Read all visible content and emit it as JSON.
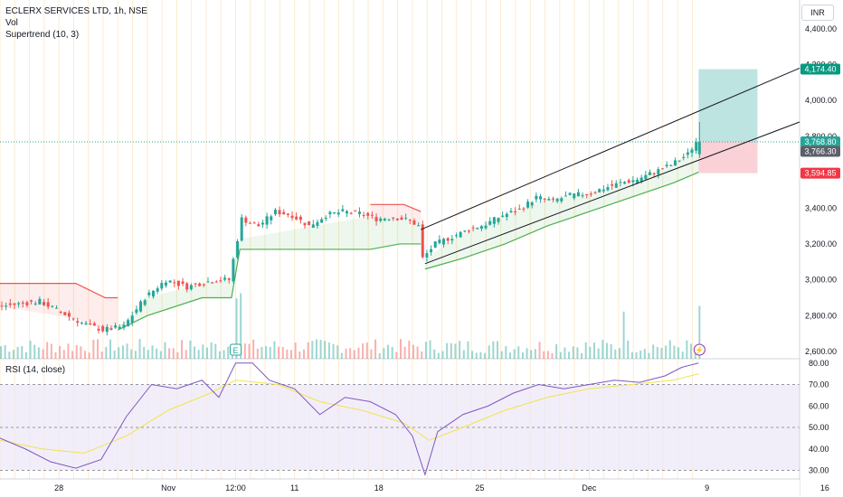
{
  "header": {
    "symbol_line": "ECLERX SERVICES LTD, 1h, NSE",
    "volume_label": "Vol",
    "supertrend_label": "Supertrend (10, 3)",
    "rsi_label": "RSI (14, close)",
    "currency": "INR"
  },
  "colors": {
    "up": "#26a69a",
    "down": "#ef5350",
    "supertrend_up": "#4caf50",
    "supertrend_down": "#ef5350",
    "rsi_line": "#7e57c2",
    "rsi_ma": "#f2e34b",
    "session_line": "#f7c873",
    "target_zone": "#b2dfdb",
    "stop_zone": "#f8c9cf",
    "target_tag": "#089981",
    "current_tag": "#26a69a",
    "prev_tag": "#5d606b",
    "stop_tag": "#f23645"
  },
  "chart_data": {
    "type": "candlestick",
    "symbol": "ECLERX SERVICES LTD",
    "interval": "1h",
    "exchange": "NSE",
    "price_axis": {
      "range": [
        2560,
        4560
      ],
      "ticks": [
        2600,
        2800,
        3000,
        3200,
        3400,
        3600,
        3800,
        4000,
        4200,
        4400
      ],
      "tick_labels": [
        "2,600.00",
        "2,800.00",
        "3,000.00",
        "3,200.00",
        "3,400.00",
        "3,600.00",
        "3,800.00",
        "4,000.00",
        "4,200.00",
        "4,400.00"
      ]
    },
    "time_axis": {
      "labels": [
        "28",
        "Nov",
        "12:00",
        "11",
        "18",
        "25",
        "Dec",
        "9",
        "16"
      ]
    },
    "close_path": [
      [
        0,
        2850
      ],
      [
        10,
        2880
      ],
      [
        20,
        2760
      ],
      [
        25,
        2720
      ],
      [
        30,
        2740
      ],
      [
        35,
        2900
      ],
      [
        40,
        3000
      ],
      [
        45,
        2960
      ],
      [
        48,
        2980
      ],
      [
        52,
        3000
      ],
      [
        55,
        3000
      ],
      [
        58,
        3340
      ],
      [
        62,
        3300
      ],
      [
        66,
        3380
      ],
      [
        70,
        3360
      ],
      [
        74,
        3300
      ],
      [
        78,
        3360
      ],
      [
        82,
        3380
      ],
      [
        86,
        3370
      ],
      [
        90,
        3340
      ],
      [
        94,
        3350
      ],
      [
        98,
        3330
      ],
      [
        100,
        3300
      ],
      [
        101,
        3120
      ],
      [
        104,
        3200
      ],
      [
        108,
        3240
      ],
      [
        112,
        3280
      ],
      [
        116,
        3310
      ],
      [
        120,
        3360
      ],
      [
        124,
        3390
      ],
      [
        128,
        3460
      ],
      [
        132,
        3440
      ],
      [
        136,
        3470
      ],
      [
        140,
        3480
      ],
      [
        144,
        3510
      ],
      [
        148,
        3540
      ],
      [
        152,
        3560
      ],
      [
        156,
        3600
      ],
      [
        160,
        3640
      ],
      [
        164,
        3700
      ],
      [
        166,
        3768.8
      ]
    ],
    "supertrend_segments": [
      {
        "trend": "down",
        "points": [
          [
            0,
            2980
          ],
          [
            18,
            2980
          ],
          [
            25,
            2900
          ],
          [
            28,
            2900
          ]
        ]
      },
      {
        "trend": "up",
        "points": [
          [
            28,
            2720
          ],
          [
            35,
            2800
          ],
          [
            48,
            2900
          ],
          [
            55,
            2900
          ],
          [
            57,
            3170
          ],
          [
            88,
            3170
          ],
          [
            95,
            3200
          ],
          [
            100,
            3200
          ]
        ]
      },
      {
        "trend": "down",
        "points": [
          [
            88,
            3420
          ],
          [
            96,
            3420
          ],
          [
            100,
            3380
          ]
        ]
      },
      {
        "trend": "up",
        "points": [
          [
            101,
            3060
          ],
          [
            110,
            3120
          ],
          [
            120,
            3200
          ],
          [
            130,
            3300
          ],
          [
            140,
            3380
          ],
          [
            150,
            3460
          ],
          [
            160,
            3540
          ],
          [
            166,
            3600
          ]
        ]
      }
    ],
    "trend_channel": {
      "upper": [
        [
          100,
          3280
        ],
        [
          190,
          4180
        ]
      ],
      "lower": [
        [
          101,
          3090
        ],
        [
          190,
          3880
        ]
      ]
    },
    "position": {
      "entry": 3768.8,
      "target": 4174.4,
      "stop": 3594.85
    },
    "price_tags": [
      {
        "label": "4,174.40",
        "value": 4174.4,
        "kind": "target"
      },
      {
        "label": "3,768.80",
        "value": 3768.8,
        "kind": "current"
      },
      {
        "label": "3,766.30",
        "value": 3766.3,
        "kind": "prev"
      },
      {
        "label": "3,594.85",
        "value": 3594.85,
        "kind": "stop"
      }
    ],
    "rsi": {
      "axis_ticks": [
        30,
        40,
        50,
        60,
        70,
        80
      ],
      "tick_labels": [
        "30.00",
        "40.00",
        "50.00",
        "60.00",
        "70.00",
        "80.00"
      ],
      "overbought": 70,
      "oversold": 30,
      "range": [
        26,
        82
      ],
      "values": [
        [
          0,
          45
        ],
        [
          6,
          40
        ],
        [
          12,
          34
        ],
        [
          18,
          31
        ],
        [
          24,
          35
        ],
        [
          30,
          55
        ],
        [
          36,
          70
        ],
        [
          42,
          68
        ],
        [
          48,
          72
        ],
        [
          52,
          64
        ],
        [
          56,
          80
        ],
        [
          60,
          80
        ],
        [
          64,
          72
        ],
        [
          70,
          68
        ],
        [
          76,
          56
        ],
        [
          82,
          64
        ],
        [
          88,
          62
        ],
        [
          94,
          56
        ],
        [
          98,
          46
        ],
        [
          101,
          28
        ],
        [
          104,
          48
        ],
        [
          110,
          56
        ],
        [
          116,
          60
        ],
        [
          122,
          66
        ],
        [
          128,
          70
        ],
        [
          134,
          68
        ],
        [
          140,
          70
        ],
        [
          146,
          72
        ],
        [
          152,
          71
        ],
        [
          158,
          74
        ],
        [
          162,
          78
        ],
        [
          166,
          80
        ]
      ],
      "ma": [
        [
          0,
          44
        ],
        [
          10,
          40
        ],
        [
          20,
          38
        ],
        [
          30,
          46
        ],
        [
          40,
          58
        ],
        [
          50,
          66
        ],
        [
          56,
          72
        ],
        [
          66,
          70
        ],
        [
          76,
          62
        ],
        [
          86,
          58
        ],
        [
          96,
          52
        ],
        [
          102,
          44
        ],
        [
          110,
          50
        ],
        [
          120,
          58
        ],
        [
          130,
          64
        ],
        [
          140,
          68
        ],
        [
          150,
          70
        ],
        [
          160,
          72
        ],
        [
          166,
          75
        ]
      ]
    }
  }
}
